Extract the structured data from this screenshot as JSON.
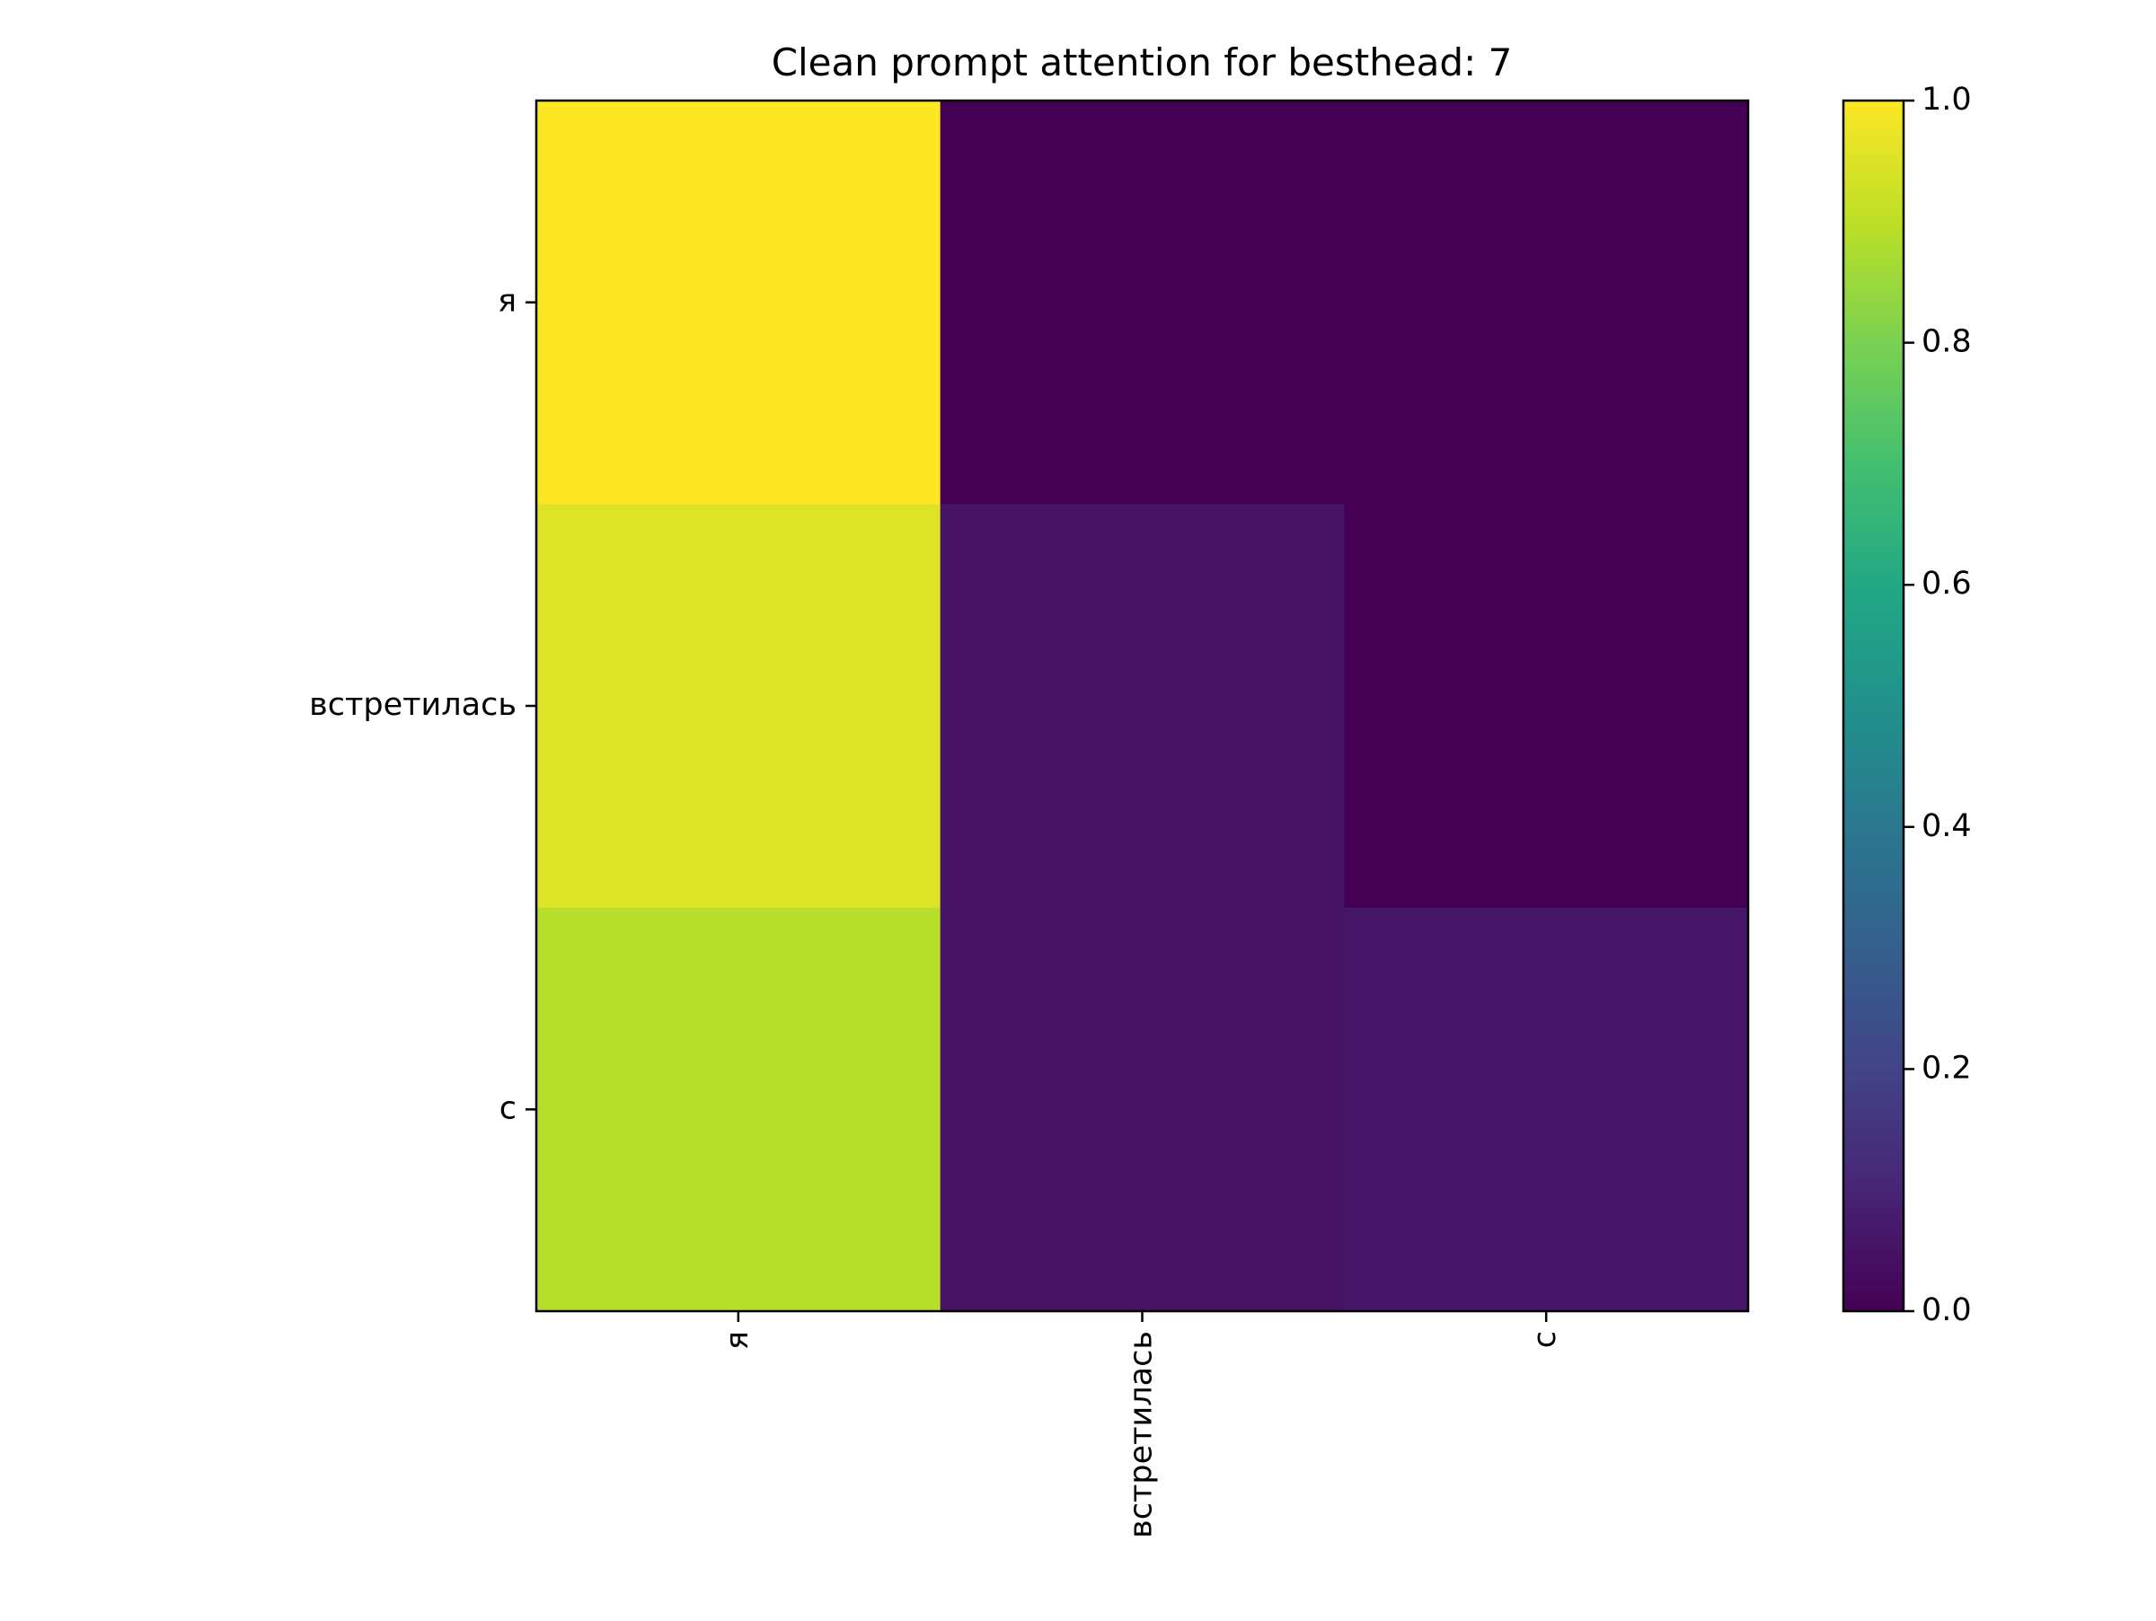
{
  "chart_data": {
    "type": "heatmap",
    "title": "Clean prompt attention for besthead: 7",
    "x_categories": [
      "я",
      "встретилась",
      "с"
    ],
    "y_categories": [
      "я",
      "встретилась",
      "с"
    ],
    "values": [
      [
        1.0,
        0.0,
        0.0
      ],
      [
        0.95,
        0.05,
        0.0
      ],
      [
        0.89,
        0.05,
        0.06
      ]
    ],
    "colormap": "viridis",
    "colorbar": {
      "range": [
        0.0,
        1.0
      ],
      "ticks": [
        "0.0",
        "0.2",
        "0.4",
        "0.6",
        "0.8",
        "1.0"
      ]
    },
    "xlabel": "",
    "ylabel": "",
    "x_tick_rotation": "vertical",
    "grid": false
  }
}
